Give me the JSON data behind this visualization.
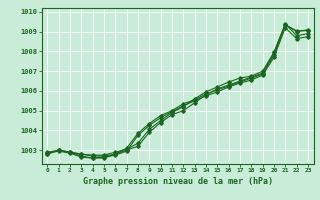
{
  "title": "",
  "xlabel": "Graphe pression niveau de la mer (hPa)",
  "background_color": "#c8ecd8",
  "grid_color": "#b0d8c0",
  "line_color": "#1a6620",
  "xlim": [
    -0.5,
    23.5
  ],
  "ylim": [
    1002.3,
    1010.2
  ],
  "yticks": [
    1003,
    1004,
    1005,
    1006,
    1007,
    1008,
    1009,
    1010
  ],
  "xticks": [
    0,
    1,
    2,
    3,
    4,
    5,
    6,
    7,
    8,
    9,
    10,
    11,
    12,
    13,
    14,
    15,
    16,
    17,
    18,
    19,
    20,
    21,
    22,
    23
  ],
  "series": [
    [
      1002.8,
      1003.0,
      1002.9,
      1002.8,
      1002.7,
      1002.7,
      1002.8,
      1003.0,
      1003.2,
      1003.9,
      1004.4,
      1004.8,
      1005.0,
      1005.4,
      1005.8,
      1006.1,
      1006.3,
      1006.5,
      1006.7,
      1006.9,
      1007.8,
      1009.35,
      1009.05,
      1009.05
    ],
    [
      1002.8,
      1003.0,
      1002.9,
      1002.7,
      1002.6,
      1002.6,
      1002.8,
      1003.1,
      1003.85,
      1004.35,
      1004.75,
      1005.0,
      1005.35,
      1005.55,
      1005.85,
      1006.05,
      1006.25,
      1006.45,
      1006.65,
      1006.85,
      1007.95,
      1009.4,
      1008.8,
      1008.9
    ],
    [
      1002.85,
      1002.95,
      1002.85,
      1002.65,
      1002.6,
      1002.65,
      1002.75,
      1002.95,
      1003.75,
      1004.25,
      1004.65,
      1004.95,
      1005.25,
      1005.5,
      1005.75,
      1005.95,
      1006.2,
      1006.4,
      1006.55,
      1006.8,
      1007.7,
      1009.2,
      1008.65,
      1008.75
    ],
    [
      1002.9,
      1003.0,
      1002.9,
      1002.8,
      1002.75,
      1002.75,
      1002.9,
      1003.05,
      1003.35,
      1004.05,
      1004.5,
      1004.9,
      1005.2,
      1005.6,
      1005.95,
      1006.2,
      1006.45,
      1006.65,
      1006.75,
      1007.0,
      1007.95,
      1009.35,
      1009.0,
      1009.1
    ]
  ]
}
